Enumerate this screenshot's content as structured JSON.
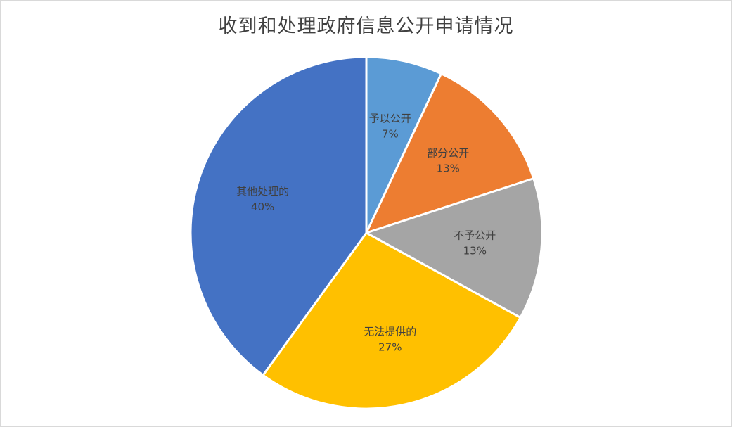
{
  "chart_data": {
    "type": "pie",
    "title": "收到和处理政府信息公开申请情况",
    "slices": [
      {
        "label": "予以公开",
        "value": 7,
        "value_label": "7%",
        "color": "#5B9BD5"
      },
      {
        "label": "部分公开",
        "value": 13,
        "value_label": "13%",
        "color": "#ED7D31"
      },
      {
        "label": "不予公开",
        "value": 13,
        "value_label": "13%",
        "color": "#A5A5A5"
      },
      {
        "label": "无法提供的",
        "value": 27,
        "value_label": "27%",
        "color": "#FFC000"
      },
      {
        "label": "其他处理的",
        "value": 40,
        "value_label": "40%",
        "color": "#4472C4"
      }
    ],
    "start_angle_deg": 0,
    "direction": "clockwise",
    "legend": "none"
  }
}
